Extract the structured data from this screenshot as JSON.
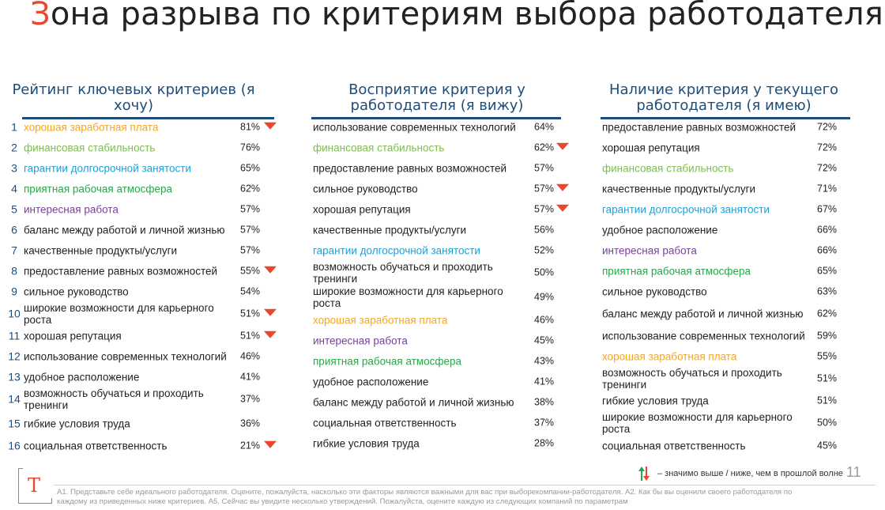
{
  "title": {
    "first_letter": "З",
    "rest": "она разрыва по критериям выбора работодателя"
  },
  "colors": {
    "accent": "#e8472e",
    "heading": "#1e4d7a",
    "orange": "#f5a623",
    "green_light": "#7cc04b",
    "blue": "#1ea1d8",
    "green": "#27a84a",
    "purple": "#7b3fa0",
    "default": "#1f1f1f"
  },
  "columns": [
    {
      "header": "Рейтинг ключевых критериев (я хочу)",
      "rows": [
        {
          "rank": "1",
          "label": "хорошая заработная плата",
          "value": "81%",
          "color": "orange",
          "down": true
        },
        {
          "rank": "2",
          "label": "финансовая стабильность",
          "value": "76%",
          "color": "green_light",
          "down": false
        },
        {
          "rank": "3",
          "label": "гарантии долгосрочной занятости",
          "value": "65%",
          "color": "blue",
          "down": false
        },
        {
          "rank": "4",
          "label": "приятная рабочая атмосфера",
          "value": "62%",
          "color": "green",
          "down": false
        },
        {
          "rank": "5",
          "label": "интересная работа",
          "value": "57%",
          "color": "purple",
          "down": false
        },
        {
          "rank": "6",
          "label": "баланс между работой и личной жизнью",
          "value": "57%",
          "color": "default",
          "down": false
        },
        {
          "rank": "7",
          "label": "качественные продукты/услуги",
          "value": "57%",
          "color": "default",
          "down": false
        },
        {
          "rank": "8",
          "label": "предоставление равных возможностей",
          "value": "55%",
          "color": "default",
          "down": true
        },
        {
          "rank": "9",
          "label": "сильное руководство",
          "value": "54%",
          "color": "default",
          "down": false
        },
        {
          "rank": "10",
          "label": "широкие возможности для карьерного роста",
          "value": "51%",
          "color": "default",
          "down": true
        },
        {
          "rank": "11",
          "label": "хорошая репутация",
          "value": "51%",
          "color": "default",
          "down": true
        },
        {
          "rank": "12",
          "label": "использование современных технологий",
          "value": "46%",
          "color": "default",
          "down": false
        },
        {
          "rank": "13",
          "label": "удобное расположение",
          "value": "41%",
          "color": "default",
          "down": false
        },
        {
          "rank": "14",
          "label": "возможность обучаться и проходить тренинги",
          "value": "37%",
          "color": "default",
          "down": false
        },
        {
          "rank": "15",
          "label": "гибкие условия труда",
          "value": "36%",
          "color": "default",
          "down": false
        },
        {
          "rank": "16",
          "label": "социальная ответственность",
          "value": "21%",
          "color": "default",
          "down": true
        }
      ]
    },
    {
      "header": "Восприятие критерия у работодателя (я вижу)",
      "rows": [
        {
          "label": "использование современных технологий",
          "value": "64%",
          "color": "default",
          "down": false
        },
        {
          "label": "финансовая стабильность",
          "value": "62%",
          "color": "green_light",
          "down": true
        },
        {
          "label": "предоставление равных возможностей",
          "value": "57%",
          "color": "default",
          "down": false
        },
        {
          "label": "сильное руководство",
          "value": "57%",
          "color": "default",
          "down": true
        },
        {
          "label": "хорошая репутация",
          "value": "57%",
          "color": "default",
          "down": true
        },
        {
          "label": "качественные продукты/услуги",
          "value": "56%",
          "color": "default",
          "down": false
        },
        {
          "label": "гарантии долгосрочной занятости",
          "value": "52%",
          "color": "blue",
          "down": false
        },
        {
          "label": "возможность обучаться и проходить тренинги",
          "value": "50%",
          "color": "default",
          "down": false
        },
        {
          "label": "широкие возможности для карьерного роста",
          "value": "49%",
          "color": "default",
          "down": false
        },
        {
          "label": "хорошая заработная плата",
          "value": "46%",
          "color": "orange",
          "down": false
        },
        {
          "label": "интересная работа",
          "value": "45%",
          "color": "purple",
          "down": false
        },
        {
          "label": "приятная рабочая атмосфера",
          "value": "43%",
          "color": "green",
          "down": false
        },
        {
          "label": "удобное расположение",
          "value": "41%",
          "color": "default",
          "down": false
        },
        {
          "label": "баланс между работой и личной жизнью",
          "value": "38%",
          "color": "default",
          "down": false
        },
        {
          "label": "социальная ответственность",
          "value": "37%",
          "color": "default",
          "down": false
        },
        {
          "label": "гибкие условия труда",
          "value": "28%",
          "color": "default",
          "down": false
        }
      ]
    },
    {
      "header": "Наличие критерия у текущего работодателя (я имею)",
      "rows": [
        {
          "label": "предоставление равных возможностей",
          "value": "72%",
          "color": "default",
          "down": false
        },
        {
          "label": "хорошая репутация",
          "value": "72%",
          "color": "default",
          "down": false
        },
        {
          "label": "финансовая стабильность",
          "value": "72%",
          "color": "green_light",
          "down": false
        },
        {
          "label": "качественные продукты/услуги",
          "value": "71%",
          "color": "default",
          "down": false
        },
        {
          "label": "гарантии долгосрочной занятости",
          "value": "67%",
          "color": "blue",
          "down": false
        },
        {
          "label": "удобное расположение",
          "value": "66%",
          "color": "default",
          "down": false
        },
        {
          "label": "интересная работа",
          "value": "66%",
          "color": "purple",
          "down": false
        },
        {
          "label": "приятная рабочая атмосфера",
          "value": "65%",
          "color": "green",
          "down": false
        },
        {
          "label": "сильное руководство",
          "value": "63%",
          "color": "default",
          "down": false
        },
        {
          "label": "баланс между работой и личной жизнью",
          "value": "62%",
          "color": "default",
          "down": false
        },
        {
          "label": "использование современных технологий",
          "value": "59%",
          "color": "default",
          "down": false
        },
        {
          "label": "хорошая заработная плата",
          "value": "55%",
          "color": "orange",
          "down": false
        },
        {
          "label": "возможность обучаться и проходить тренинги",
          "value": "51%",
          "color": "default",
          "down": false
        },
        {
          "label": "гибкие условия труда",
          "value": "51%",
          "color": "default",
          "down": false
        },
        {
          "label": "широкие возможности для карьерного роста",
          "value": "50%",
          "color": "default",
          "down": false
        },
        {
          "label": "социальная ответственность",
          "value": "45%",
          "color": "default",
          "down": false
        }
      ]
    }
  ],
  "legend": {
    "icon": "up-down-arrows-icon",
    "text": "– значимо выше / ниже, чем в прошлой волне"
  },
  "logo": {
    "letter": "T"
  },
  "page_number": "11",
  "footnote": {
    "line1": "А1. Представьте себе идеального работодателя. Оцените, пожалуйста, насколько эти факторы являются важными для вас при выборекомпании-работодателя.  А2. Как бы вы оценили своего работодателя по",
    "line2": "каждому из приведенных ниже критериев.  А5. Сейчас вы увидите несколько утверждений. Пожалуйста, оцените каждую из следующих компаний по параметрам"
  }
}
